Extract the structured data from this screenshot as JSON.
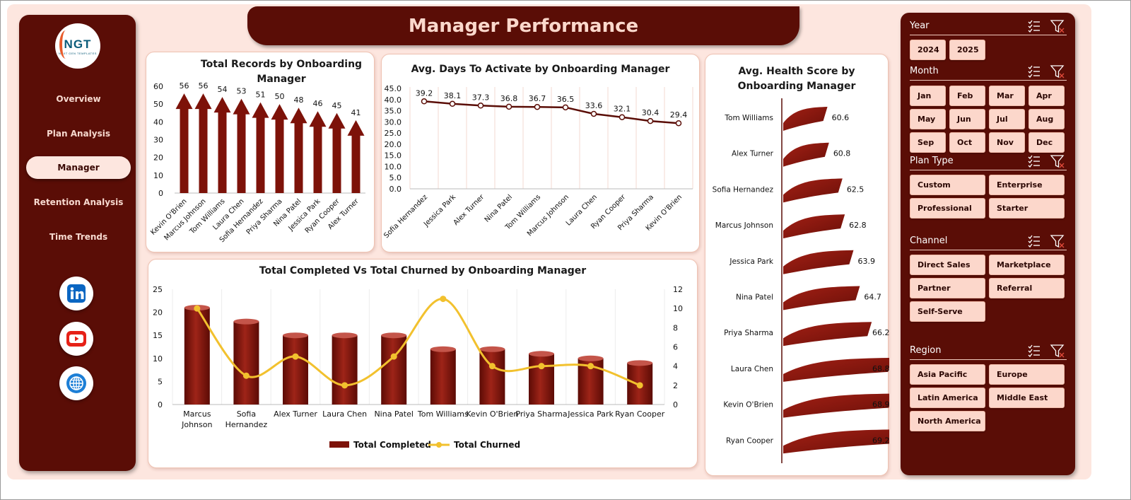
{
  "dashboard": {
    "title": "Manager Performance"
  },
  "brand": {
    "logo_text": "NGT",
    "logo_subtext": "NEXT GEN TEMPLATES"
  },
  "nav": {
    "items": [
      {
        "label": "Overview",
        "active": false
      },
      {
        "label": "Plan Analysis",
        "active": false
      },
      {
        "label": "Manager",
        "active": true
      },
      {
        "label": "Retention Analysis",
        "active": false
      },
      {
        "label": "Time Trends",
        "active": false
      }
    ],
    "social": [
      "linkedin-icon",
      "youtube-icon",
      "globe-icon"
    ]
  },
  "colors": {
    "accent": "#5a0d06",
    "bar": "#8b1a10",
    "line": "#f2c12e",
    "panel_bg": "#fde6df",
    "chip": "#fcd7cb"
  },
  "slicers": {
    "year": {
      "title": "Year",
      "options": [
        "2024",
        "2025"
      ]
    },
    "month": {
      "title": "Month",
      "options": [
        "Jan",
        "Feb",
        "Mar",
        "Apr",
        "May",
        "Jun",
        "Jul",
        "Aug",
        "Sep",
        "Oct",
        "Nov",
        "Dec"
      ]
    },
    "plan_type": {
      "title": "Plan Type",
      "options": [
        "Custom",
        "Enterprise",
        "Professional",
        "Starter"
      ]
    },
    "channel": {
      "title": "Channel",
      "options": [
        "Direct Sales",
        "Marketplace",
        "Partner",
        "Referral",
        "Self-Serve"
      ]
    },
    "region": {
      "title": "Region",
      "options": [
        "Asia Pacific",
        "Europe",
        "Latin America",
        "Middle East",
        "North America"
      ]
    }
  },
  "chart_data": [
    {
      "id": "records",
      "type": "bar",
      "title": "Total Records by Onboarding Manager",
      "categories": [
        "Kevin O'Brien",
        "Marcus Johnson",
        "Tom Williams",
        "Laura Chen",
        "Sofia Hernandez",
        "Priya Sharma",
        "Nina Patel",
        "Jessica Park",
        "Ryan Cooper",
        "Alex Turner"
      ],
      "values": [
        56,
        56,
        54,
        53,
        51,
        50,
        48,
        46,
        45,
        41
      ],
      "yticks": [
        0,
        10,
        20,
        30,
        40,
        50,
        60
      ],
      "ylim": [
        0,
        60
      ]
    },
    {
      "id": "days",
      "type": "line",
      "title": "Avg. Days To Activate by Onboarding Manager",
      "categories": [
        "Sofia Hernandez",
        "Jessica Park",
        "Alex Turner",
        "Nina Patel",
        "Tom Williams",
        "Marcus Johnson",
        "Laura Chen",
        "Ryan Cooper",
        "Priya Sharma",
        "Kevin O'Brien"
      ],
      "values": [
        39.2,
        38.1,
        37.3,
        36.8,
        36.7,
        36.5,
        33.6,
        32.1,
        30.4,
        29.4
      ],
      "yticks": [
        "0.0",
        "5.0",
        "10.0",
        "15.0",
        "20.0",
        "25.0",
        "30.0",
        "35.0",
        "40.0",
        "45.0"
      ],
      "ylim": [
        0,
        45
      ]
    },
    {
      "id": "completed",
      "type": "bar",
      "title": "Total Completed Vs Total Churned  by Onboarding Manager",
      "categories": [
        [
          "Marcus",
          "Johnson"
        ],
        [
          "Sofia",
          "Hernandez"
        ],
        [
          "Alex Turner"
        ],
        [
          "Laura Chen"
        ],
        [
          "Nina Patel"
        ],
        [
          "Tom Williams"
        ],
        [
          "Kevin O'Brien"
        ],
        [
          "Priya Sharma"
        ],
        [
          "Jessica Park"
        ],
        [
          "Ryan Cooper"
        ]
      ],
      "series": [
        {
          "name": "Total Completed",
          "values": [
            21,
            18,
            15,
            15,
            15,
            12,
            12,
            11,
            10,
            9
          ],
          "axis": "left"
        },
        {
          "name": "Total Churned",
          "values": [
            10,
            3,
            5,
            2,
            5,
            11,
            4,
            4,
            4,
            2
          ],
          "axis": "right"
        }
      ],
      "yticks_left": [
        0,
        5,
        10,
        15,
        20,
        25
      ],
      "yticks_right": [
        0,
        2,
        4,
        6,
        8,
        10,
        12
      ],
      "ylim_left": [
        0,
        25
      ],
      "ylim_right": [
        0,
        12
      ],
      "legend": "bottom"
    },
    {
      "id": "health",
      "type": "bar",
      "title": "Avg. Health Score by Onboarding Manager",
      "categories": [
        "Tom Williams",
        "Alex Turner",
        "Sofia Hernandez",
        "Marcus Johnson",
        "Jessica Park",
        "Nina Patel",
        "Priya Sharma",
        "Laura Chen",
        "Kevin O'Brien",
        "Ryan Cooper"
      ],
      "values": [
        60.6,
        60.8,
        62.5,
        62.8,
        63.9,
        64.7,
        66.2,
        68.8,
        68.9,
        69.2
      ]
    }
  ]
}
